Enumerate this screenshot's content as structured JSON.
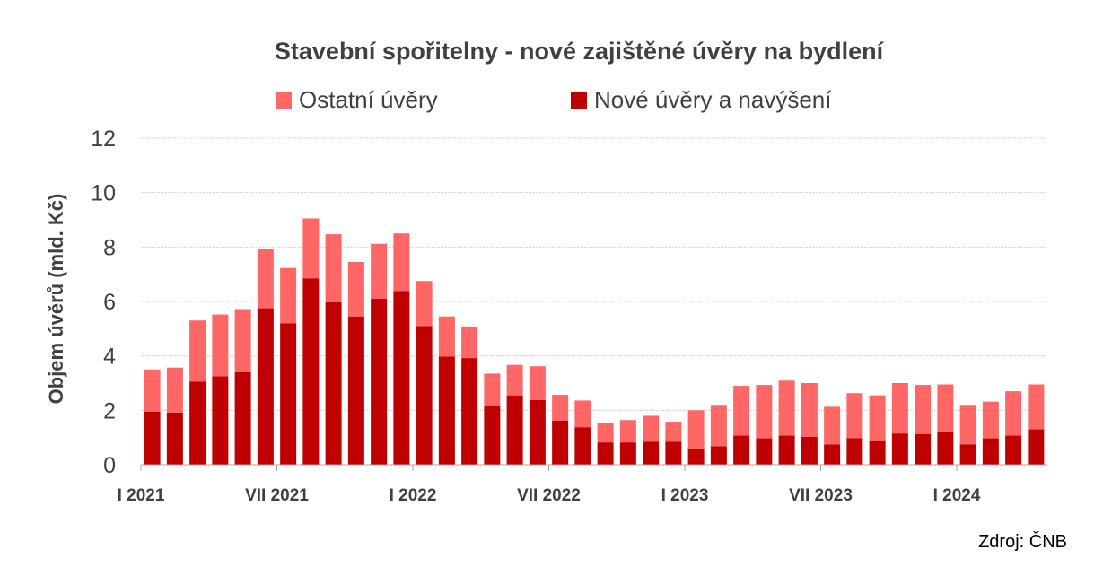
{
  "chart_data": {
    "type": "bar",
    "stacked": true,
    "title": "Stavební spořitelny - nové zajištěné úvěry na bydlení",
    "ylabel": "Objem úvěrů (mld. Kč)",
    "xlabel": "",
    "ylim": [
      0,
      12
    ],
    "yticks": [
      "0",
      "2",
      "4",
      "6",
      "8",
      "10",
      "12"
    ],
    "grid": true,
    "legend_position": "top",
    "x_tick_labels": [
      {
        "index": 0,
        "label": "I 2021"
      },
      {
        "index": 6,
        "label": "VII 2021"
      },
      {
        "index": 12,
        "label": "I 2022"
      },
      {
        "index": 18,
        "label": "VII 2022"
      },
      {
        "index": 24,
        "label": "I 2023"
      },
      {
        "index": 30,
        "label": "VII 2023"
      },
      {
        "index": 36,
        "label": "I 2024"
      }
    ],
    "categories": [
      "I 2021",
      "II 2021",
      "III 2021",
      "IV 2021",
      "V 2021",
      "VI 2021",
      "VII 2021",
      "VIII 2021",
      "IX 2021",
      "X 2021",
      "XI 2021",
      "XII 2021",
      "I 2022",
      "II 2022",
      "III 2022",
      "IV 2022",
      "V 2022",
      "VI 2022",
      "VII 2022",
      "VIII 2022",
      "IX 2022",
      "X 2022",
      "XI 2022",
      "XII 2022",
      "I 2023",
      "II 2023",
      "III 2023",
      "IV 2023",
      "V 2023",
      "VI 2023",
      "VII 2023",
      "VIII 2023",
      "IX 2023",
      "X 2023",
      "XI 2023",
      "XII 2023",
      "I 2024",
      "II 2024",
      "III 2024",
      "IV 2024"
    ],
    "series": [
      {
        "name": "Nové úvěry a navýšení",
        "color": "#c00000",
        "values": [
          1.95,
          1.92,
          3.05,
          3.25,
          3.4,
          5.75,
          5.2,
          6.85,
          5.97,
          5.45,
          6.1,
          6.38,
          5.1,
          3.98,
          3.92,
          2.15,
          2.55,
          2.38,
          1.62,
          1.38,
          0.82,
          0.82,
          0.85,
          0.85,
          0.6,
          0.68,
          1.07,
          0.97,
          1.07,
          1.03,
          0.75,
          0.98,
          0.9,
          1.15,
          1.13,
          1.2,
          0.75,
          0.97,
          1.07,
          1.3
        ]
      },
      {
        "name": "Ostatní úvěry",
        "color": "#ff6666",
        "values": [
          1.55,
          1.65,
          2.25,
          2.27,
          2.32,
          2.17,
          2.03,
          2.2,
          2.5,
          2.0,
          2.02,
          2.12,
          1.65,
          1.47,
          1.16,
          1.2,
          1.12,
          1.24,
          0.95,
          0.98,
          0.71,
          0.82,
          0.95,
          0.73,
          1.4,
          1.52,
          1.83,
          1.96,
          2.02,
          1.97,
          1.38,
          1.65,
          1.65,
          1.85,
          1.8,
          1.75,
          1.45,
          1.35,
          1.63,
          1.65
        ]
      }
    ],
    "legend": [
      "Ostatní úvěry",
      "Nové úvěry a navýšení"
    ],
    "colors": {
      "dark": "#c00000",
      "light": "#ff6666",
      "text": "#404040",
      "grid": "#c8c8c8"
    }
  },
  "source": "Zdroj: ČNB"
}
